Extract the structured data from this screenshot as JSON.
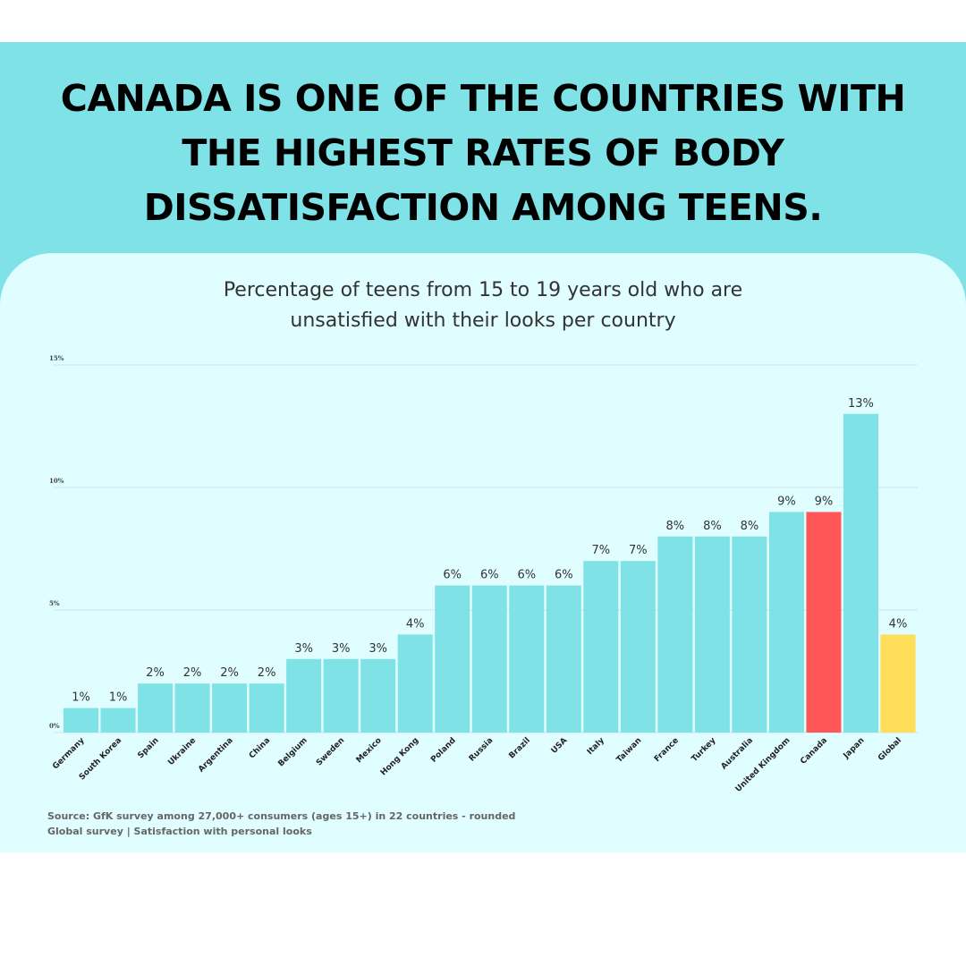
{
  "headline": {
    "line1": "CANADA IS ONE OF THE COUNTRIES WITH",
    "line2": "THE HIGHEST RATES OF BODY",
    "line3": "DISSATISFACTION AMONG TEENS."
  },
  "colors": {
    "banner": "#7fe2e6",
    "card": "#e0fdff",
    "bar": "#7fe2e6",
    "highlight": "#ff5757",
    "global": "#ffde59"
  },
  "chart_data": {
    "type": "bar",
    "title_line1": "Percentage of teens from 15 to 19 years old who are",
    "title_line2": "unsatisfied with their looks per country",
    "xlabel": "",
    "ylabel": "",
    "ylim": [
      0,
      15
    ],
    "yticks": [
      0,
      5,
      10,
      15
    ],
    "ytick_labels": [
      "0%",
      "5%",
      "10%",
      "15%"
    ],
    "grid": true,
    "categories": [
      "Germany",
      "South Korea",
      "Spain",
      "Ukraine",
      "Argentina",
      "China",
      "Belgium",
      "Sweden",
      "Mexico",
      "Hong Kong",
      "Poland",
      "Russia",
      "Brazil",
      "USA",
      "Italy",
      "Taiwan",
      "France",
      "Turkey",
      "Australia",
      "United Kingdom",
      "Canada",
      "Japan",
      "Global"
    ],
    "values": [
      1,
      1,
      2,
      2,
      2,
      2,
      3,
      3,
      3,
      4,
      6,
      6,
      6,
      6,
      7,
      7,
      8,
      8,
      8,
      9,
      9,
      13,
      4
    ],
    "value_labels": [
      "1%",
      "1%",
      "2%",
      "2%",
      "2%",
      "2%",
      "3%",
      "3%",
      "3%",
      "4%",
      "6%",
      "6%",
      "6%",
      "6%",
      "7%",
      "7%",
      "8%",
      "8%",
      "8%",
      "9%",
      "9%",
      "13%",
      "4%"
    ],
    "bar_colors": [
      "#7fe2e6",
      "#7fe2e6",
      "#7fe2e6",
      "#7fe2e6",
      "#7fe2e6",
      "#7fe2e6",
      "#7fe2e6",
      "#7fe2e6",
      "#7fe2e6",
      "#7fe2e6",
      "#7fe2e6",
      "#7fe2e6",
      "#7fe2e6",
      "#7fe2e6",
      "#7fe2e6",
      "#7fe2e6",
      "#7fe2e6",
      "#7fe2e6",
      "#7fe2e6",
      "#7fe2e6",
      "#ff5757",
      "#7fe2e6",
      "#ffde59"
    ]
  },
  "source": {
    "line1": "Source: GfK survey among 27,000+ consumers (ages 15+) in 22 countries - rounded",
    "line2": "Global survey | Satisfaction with personal looks"
  }
}
